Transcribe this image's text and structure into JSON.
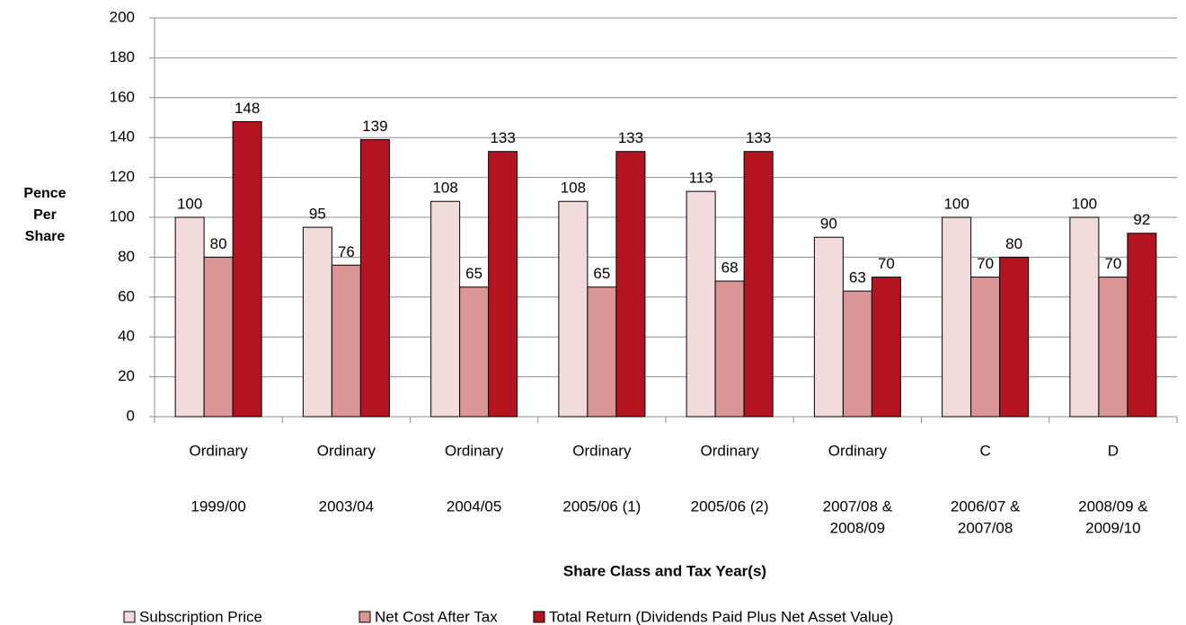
{
  "chart_data": {
    "type": "bar",
    "y_label": "Pence Per Share",
    "x_label": "Share Class and Tax Year(s)",
    "categories": [
      [
        "Ordinary",
        "1999/00"
      ],
      [
        "Ordinary",
        "2003/04"
      ],
      [
        "Ordinary",
        "2004/05"
      ],
      [
        "Ordinary",
        "2005/06 (1)"
      ],
      [
        "Ordinary",
        "2005/06 (2)"
      ],
      [
        "Ordinary",
        "2007/08 &",
        "2008/09"
      ],
      [
        "C",
        "2006/07 &",
        "2007/08"
      ],
      [
        "D",
        "2008/09 &",
        "2009/10"
      ]
    ],
    "series": [
      {
        "name": "Subscription Price",
        "color": "#f2dcdb",
        "values": [
          100,
          95,
          108,
          108,
          113,
          90,
          100,
          100
        ]
      },
      {
        "name": "Net Cost After Tax",
        "color": "#d99694",
        "values": [
          80,
          76,
          65,
          65,
          68,
          63,
          70,
          70
        ]
      },
      {
        "name": "Total Return (Dividends Paid Plus Net Asset Value)",
        "color": "#b3141f",
        "values": [
          148,
          139,
          133,
          133,
          133,
          70,
          80,
          92
        ]
      }
    ],
    "ylim": [
      0,
      200
    ],
    "yticks": [
      0,
      20,
      40,
      60,
      80,
      100,
      120,
      140,
      160,
      180,
      200
    ],
    "grid": true,
    "legend": "bottom"
  }
}
